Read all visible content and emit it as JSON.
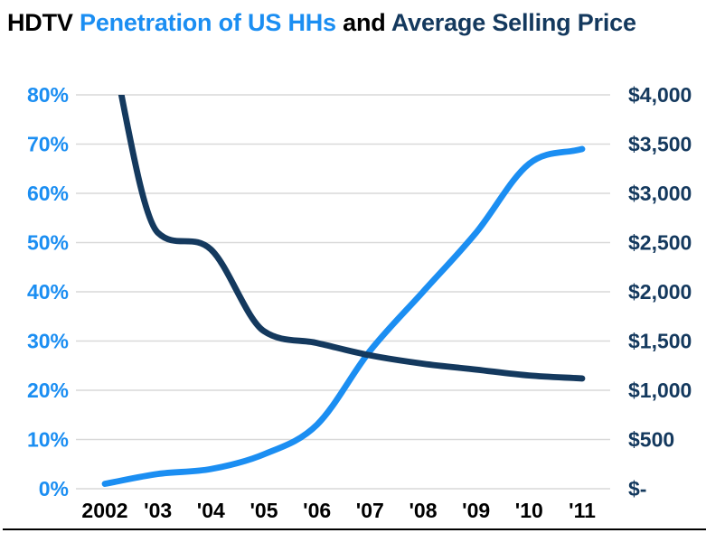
{
  "title": {
    "segments": [
      {
        "text": "HDTV ",
        "color": "#000000"
      },
      {
        "text": "Penetration of US HHs",
        "color": "#1B8EF2"
      },
      {
        "text": " and ",
        "color": "#000000"
      },
      {
        "text": "Average Selling Price",
        "color": "#14395E"
      }
    ],
    "full_text": "HDTV Penetration of US HHs and Average Selling Price"
  },
  "chart_data": {
    "type": "line",
    "title": "HDTV Penetration of US HHs and Average Selling Price",
    "categories": [
      "2002",
      "'03",
      "'04",
      "'05",
      "'06",
      "'07",
      "'08",
      "'09",
      "'10",
      "'11"
    ],
    "series": [
      {
        "name": "HDTV Penetration of US HHs",
        "axis": "left",
        "unit": "percent",
        "color": "#1B8EF2",
        "values": [
          1,
          3,
          4,
          7,
          13,
          28,
          40,
          52,
          66,
          69
        ]
      },
      {
        "name": "Average Selling Price",
        "axis": "right",
        "unit": "USD",
        "color": "#14395E",
        "values": [
          4800,
          2600,
          2430,
          1600,
          1480,
          1355,
          1270,
          1210,
          1150,
          1120
        ],
        "clipped_at_top": true
      }
    ],
    "left_axis": {
      "min": 0,
      "max": 80,
      "step": 10,
      "color": "#1B8EF2",
      "tick_labels": [
        "80%",
        "70%",
        "60%",
        "50%",
        "40%",
        "30%",
        "20%",
        "10%",
        "0%"
      ]
    },
    "right_axis": {
      "min": 0,
      "max": 4000,
      "step": 500,
      "color": "#14395E",
      "tick_labels": [
        "$4,000",
        "$3,500",
        "$3,000",
        "$2,500",
        "$2,000",
        "$1,500",
        "$1,000",
        "$500",
        "$-"
      ]
    },
    "x_axis": {
      "label_color": "#000000"
    },
    "grid": {
      "horizontal": true,
      "vertical": false,
      "color": "#D9D9D9"
    },
    "legend": "none",
    "smoothed_lines": true
  }
}
